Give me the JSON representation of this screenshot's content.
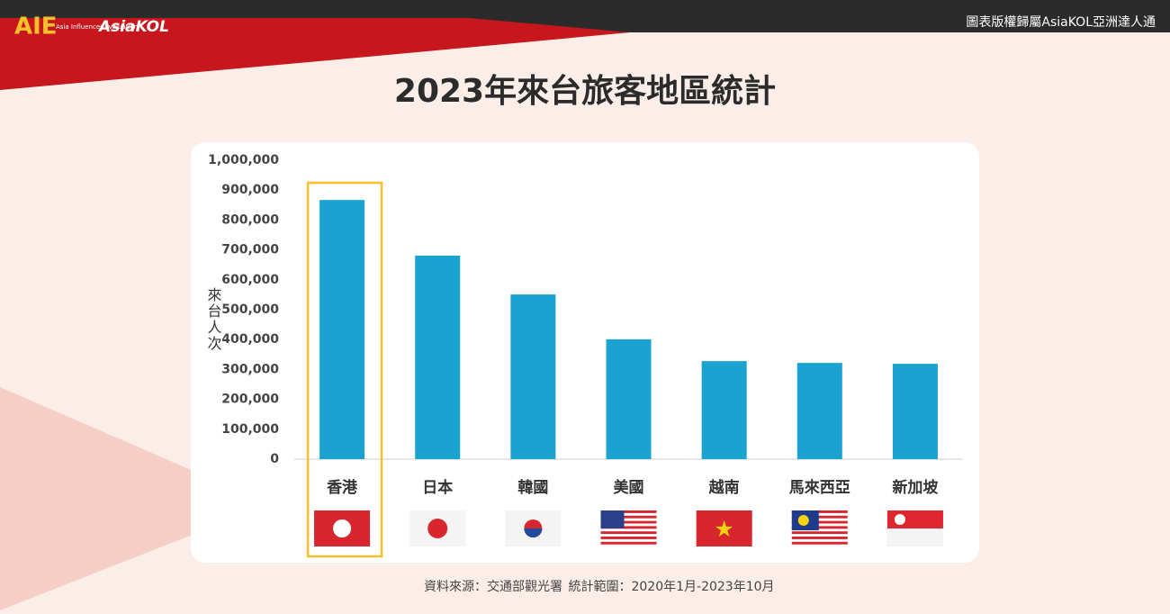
{
  "header": {
    "logo": "AIE",
    "logo_sub": "Asia Influencer Evaluation",
    "brand": "AsiaKOL",
    "copyright": "圖表版權歸屬AsiaKOL亞洲達人通"
  },
  "chart_data": {
    "type": "bar",
    "title": "2023年來台旅客地區統計",
    "y_label": "來台人次",
    "categories": [
      "香港",
      "日本",
      "韓國",
      "美國",
      "越南",
      "馬來西亞",
      "新加坡"
    ],
    "values": [
      867000,
      681000,
      551000,
      401000,
      328000,
      322000,
      319000
    ],
    "color": "#1aa3d1",
    "ylim": [
      0,
      1000000
    ],
    "yticks": [
      0,
      {
        "value": 100000,
        "label": "100,000"
      },
      {
        "value": 200000,
        "label": "200,000"
      },
      {
        "value": 300000,
        "label": "300,000"
      },
      {
        "value": 400000,
        "label": "400,000"
      },
      {
        "value": 500000,
        "label": "500,000"
      },
      {
        "value": 600000,
        "label": "600,000"
      },
      {
        "value": 700000,
        "label": "700,000"
      },
      {
        "value": 800000,
        "label": "800,000"
      },
      {
        "value": 900000,
        "label": "900,000"
      },
      {
        "value": 1000000,
        "label": "1,000,000"
      }
    ],
    "grid": false
  },
  "footer": {
    "source": "資料來源：交通部觀光署",
    "range": "統計範圍：2020年1月-2023年10月"
  }
}
